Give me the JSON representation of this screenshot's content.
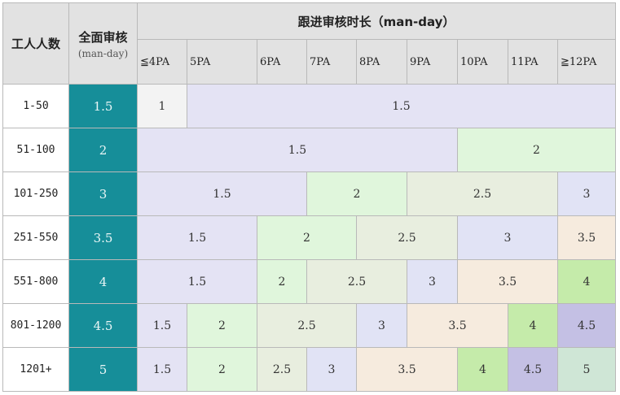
{
  "header": {
    "workers_label": "工人人数",
    "full_audit_label": "全面审核",
    "full_audit_unit": "(man-day)",
    "followup_label": "跟进审核时长（man-day）"
  },
  "pa_bands": [
    "≦4PA",
    "5PA",
    "6PA",
    "7PA",
    "8PA",
    "9PA",
    "10PA",
    "11PA",
    "≧12PA"
  ],
  "rows": [
    {
      "workers": "1-50",
      "full": "1.5",
      "cells": [
        {
          "v": "1",
          "span": 1
        },
        {
          "v": "1.5",
          "span": 8
        }
      ]
    },
    {
      "workers": "51-100",
      "full": "2",
      "cells": [
        {
          "v": "1.5",
          "span": 6
        },
        {
          "v": "2",
          "span": 3
        }
      ]
    },
    {
      "workers": "101-250",
      "full": "3",
      "cells": [
        {
          "v": "1.5",
          "span": 3
        },
        {
          "v": "2",
          "span": 2
        },
        {
          "v": "2.5",
          "span": 3
        },
        {
          "v": "3",
          "span": 1
        }
      ]
    },
    {
      "workers": "251-550",
      "full": "3.5",
      "cells": [
        {
          "v": "1.5",
          "span": 2
        },
        {
          "v": "2",
          "span": 2
        },
        {
          "v": "2.5",
          "span": 2
        },
        {
          "v": "3",
          "span": 2
        },
        {
          "v": "3.5",
          "span": 1
        }
      ]
    },
    {
      "workers": "551-800",
      "full": "4",
      "cells": [
        {
          "v": "1.5",
          "span": 2
        },
        {
          "v": "2",
          "span": 1
        },
        {
          "v": "2.5",
          "span": 2
        },
        {
          "v": "3",
          "span": 1
        },
        {
          "v": "3.5",
          "span": 2
        },
        {
          "v": "4",
          "span": 1
        }
      ]
    },
    {
      "workers": "801-1200",
      "full": "4.5",
      "cells": [
        {
          "v": "1.5",
          "span": 1
        },
        {
          "v": "2",
          "span": 1
        },
        {
          "v": "2.5",
          "span": 2
        },
        {
          "v": "3",
          "span": 1
        },
        {
          "v": "3.5",
          "span": 2
        },
        {
          "v": "4",
          "span": 1
        },
        {
          "v": "4.5",
          "span": 1
        }
      ]
    },
    {
      "workers": "1201+",
      "full": "5",
      "cells": [
        {
          "v": "1.5",
          "span": 1
        },
        {
          "v": "2",
          "span": 1
        },
        {
          "v": "2.5",
          "span": 1
        },
        {
          "v": "3",
          "span": 1
        },
        {
          "v": "3.5",
          "span": 2
        },
        {
          "v": "4",
          "span": 1
        },
        {
          "v": "4.5",
          "span": 1
        },
        {
          "v": "5",
          "span": 1
        }
      ]
    }
  ],
  "colors": {
    "full_audit": "#168e99",
    "header": "#e2e2e2",
    "1": "#f3f3f3",
    "1.5": "#e4e3f4",
    "2": "#e0f6dc",
    "2.5": "#e8eedf",
    "3": "#e1e3f5",
    "3.5": "#f6ebde",
    "4": "#c5ebaa",
    "4.5": "#c4c0e4",
    "5": "#cfe6d6"
  }
}
